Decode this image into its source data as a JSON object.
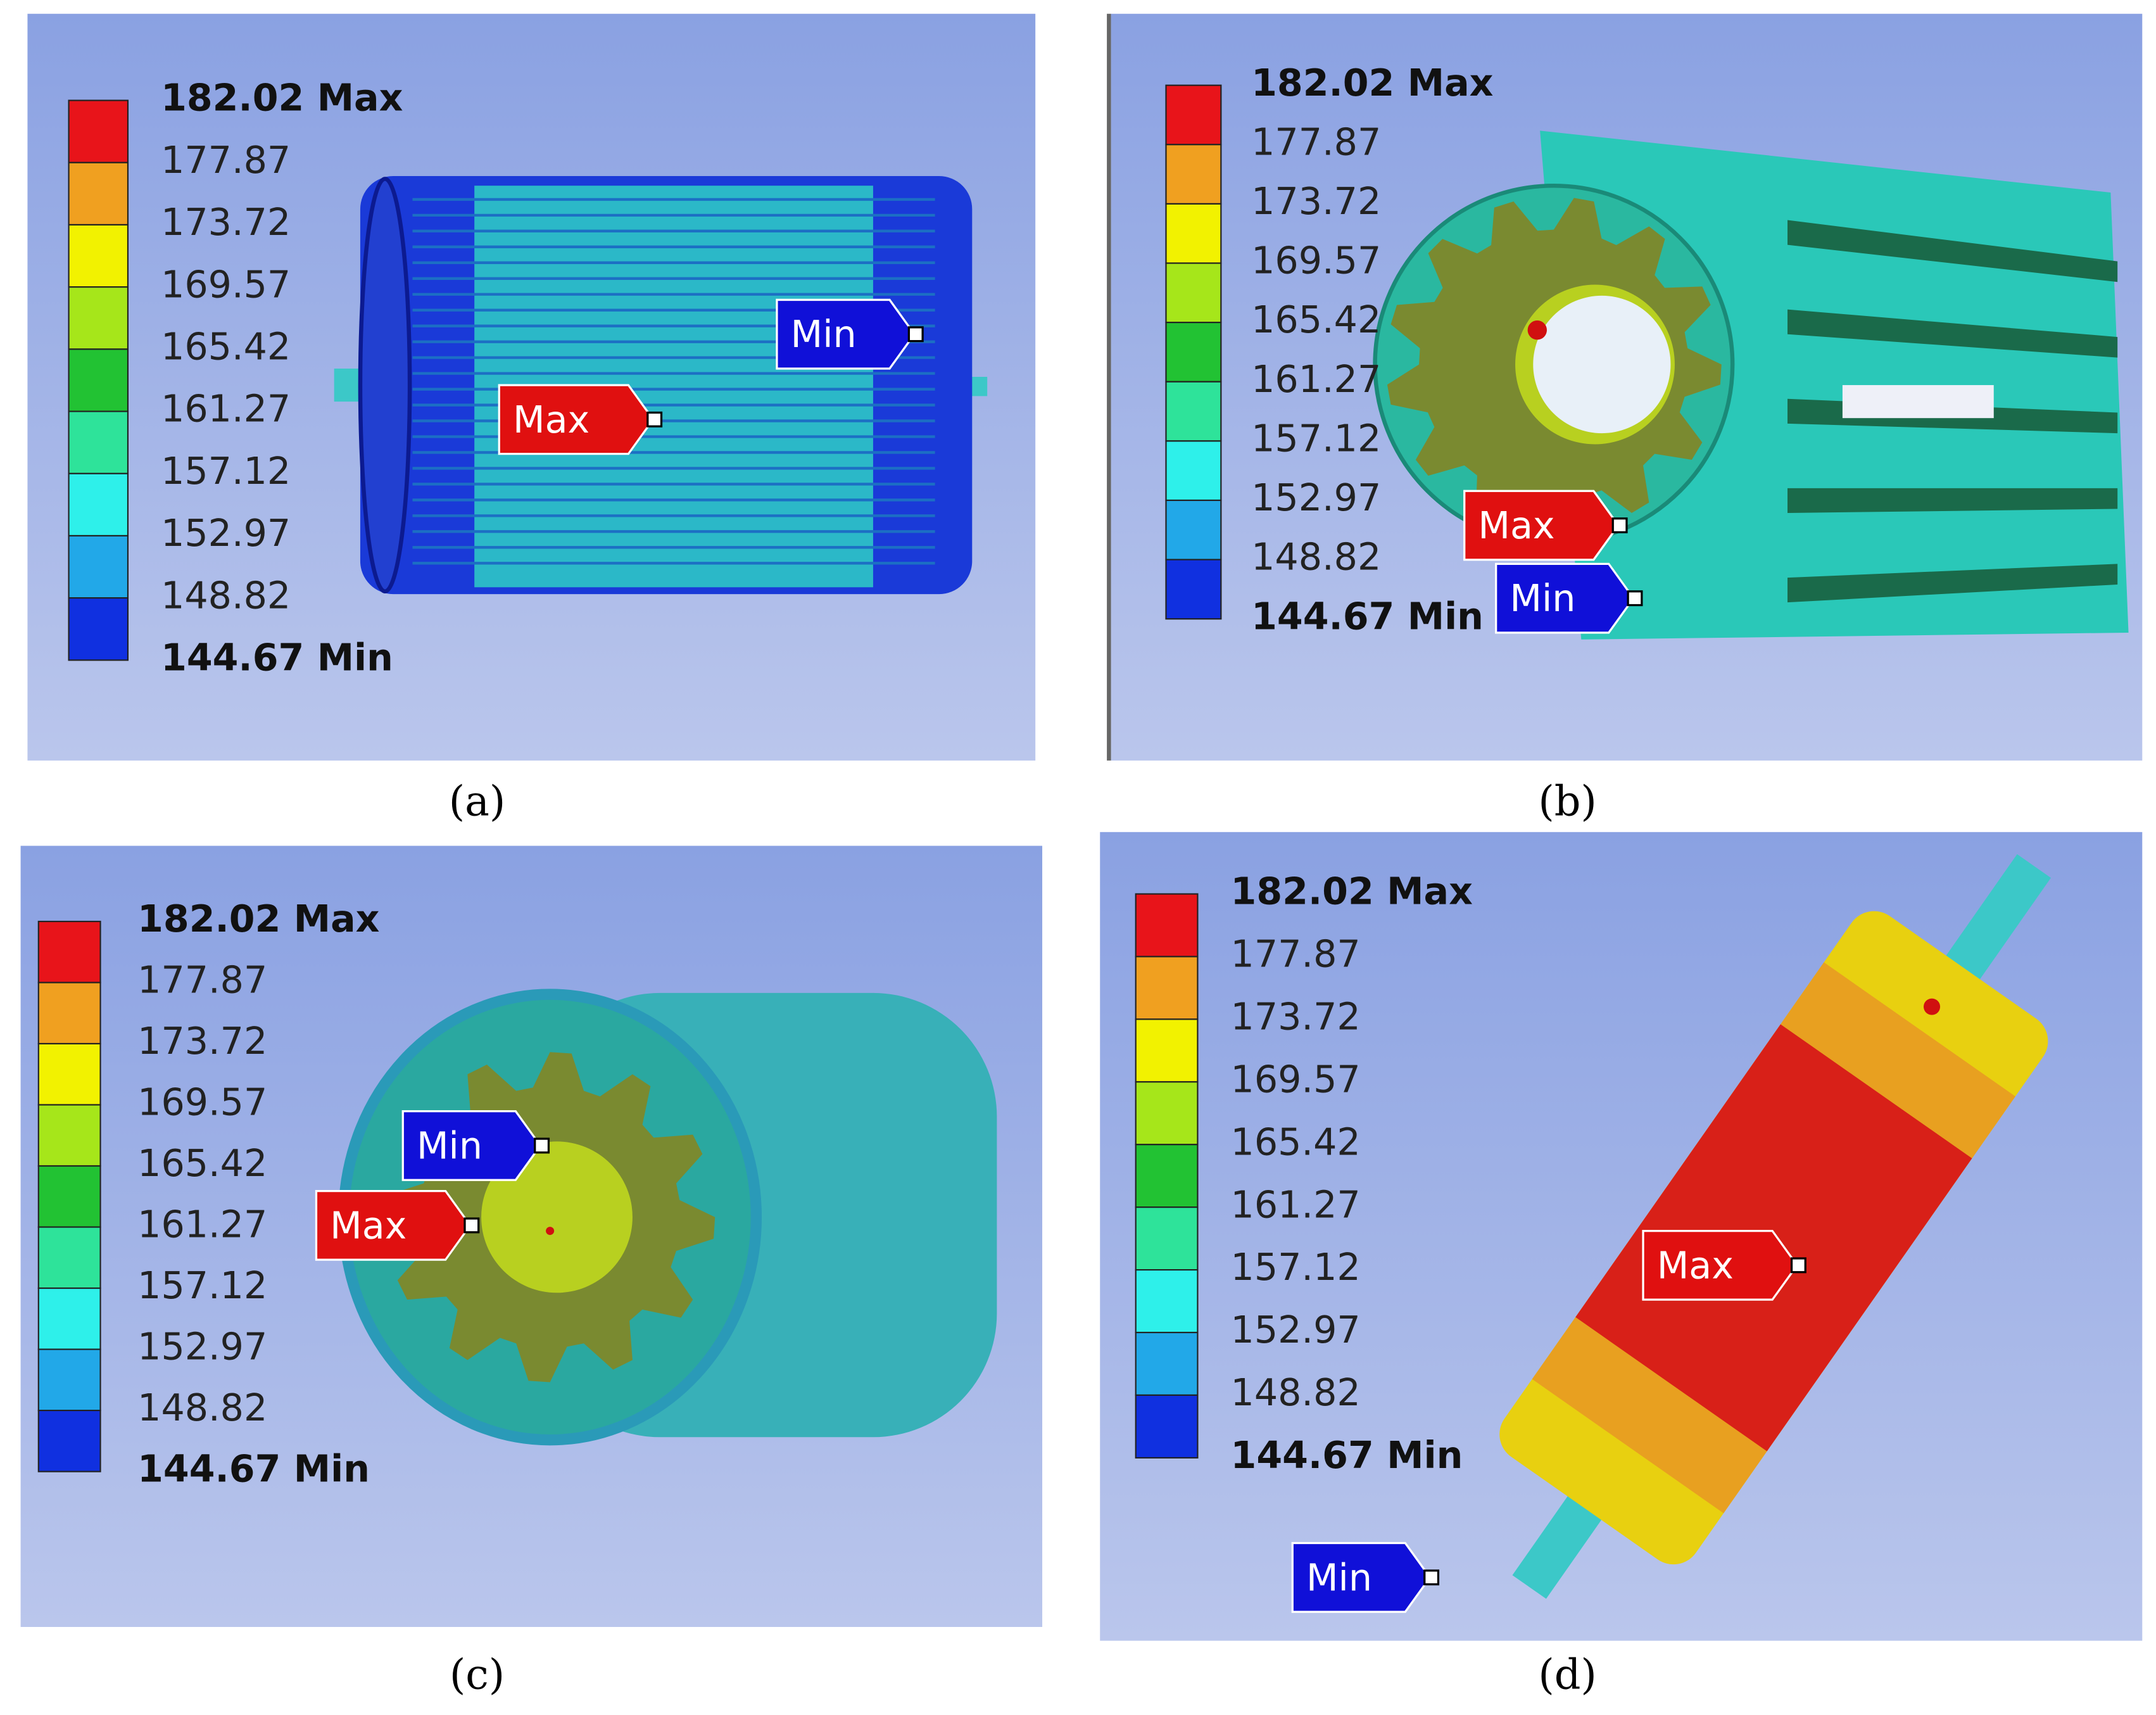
{
  "panels": [
    {
      "legend": [
        "182.02 Max",
        "177.87",
        "173.72",
        "169.57",
        "165.42",
        "161.27",
        "157.12",
        "152.97",
        "148.82",
        "144.67 Min"
      ],
      "max_label": "Max",
      "min_label": "Min",
      "caption": "(a)"
    },
    {
      "legend": [
        "182.02 Max",
        "177.87",
        "173.72",
        "169.57",
        "165.42",
        "161.27",
        "157.12",
        "152.97",
        "148.82",
        "144.67 Min"
      ],
      "max_label": "Max",
      "min_label": "Min",
      "caption": "(b)"
    },
    {
      "legend": [
        "182.02 Max",
        "177.87",
        "173.72",
        "169.57",
        "165.42",
        "161.27",
        "157.12",
        "152.97",
        "148.82",
        "144.67 Min"
      ],
      "max_label": "Max",
      "min_label": "Min",
      "caption": "(c)"
    },
    {
      "legend": [
        "182.02 Max",
        "177.87",
        "173.72",
        "169.57",
        "165.42",
        "161.27",
        "157.12",
        "152.97",
        "148.82",
        "144.67 Min"
      ],
      "max_label": "Max",
      "min_label": "Min",
      "caption": "(d)"
    }
  ]
}
